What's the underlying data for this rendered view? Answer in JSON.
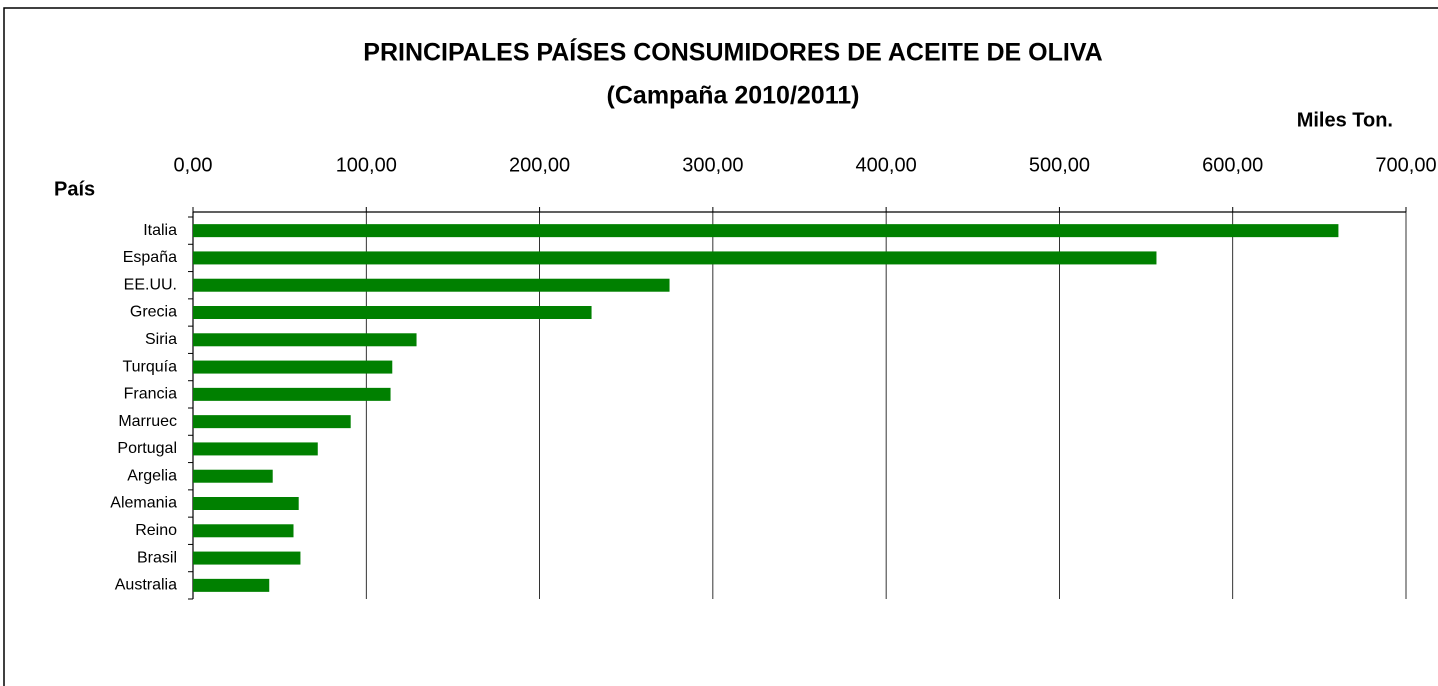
{
  "chart_data": {
    "type": "barh",
    "title": "PRINCIPALES PAÍSES CONSUMIDORES DE ACEITE DE OLIVA",
    "subtitle": "(Campaña 2010/2011)",
    "value_axis_label": "Miles Ton.",
    "category_axis_label": "País",
    "categories": [
      "Italia",
      "España",
      "EE.UU.",
      "Grecia",
      "Siria",
      "Turquía",
      "Francia",
      "Marruec",
      "Portugal",
      "Argelia",
      "Alemania",
      "Reino",
      "Brasil",
      "Australia"
    ],
    "values": [
      661,
      556,
      275,
      230,
      129,
      115,
      114,
      91,
      72,
      46,
      61,
      58,
      62,
      44
    ],
    "color": "#008000",
    "xlim": [
      0,
      700
    ],
    "xticks": [
      {
        "value": 0,
        "label": "0,00"
      },
      {
        "value": 100,
        "label": "100,00"
      },
      {
        "value": 200,
        "label": "200,00"
      },
      {
        "value": 300,
        "label": "300,00"
      },
      {
        "value": 400,
        "label": "400,00"
      },
      {
        "value": 500,
        "label": "500,00"
      },
      {
        "value": 600,
        "label": "600,00"
      },
      {
        "value": 700,
        "label": "700,00"
      }
    ],
    "grid": true
  }
}
